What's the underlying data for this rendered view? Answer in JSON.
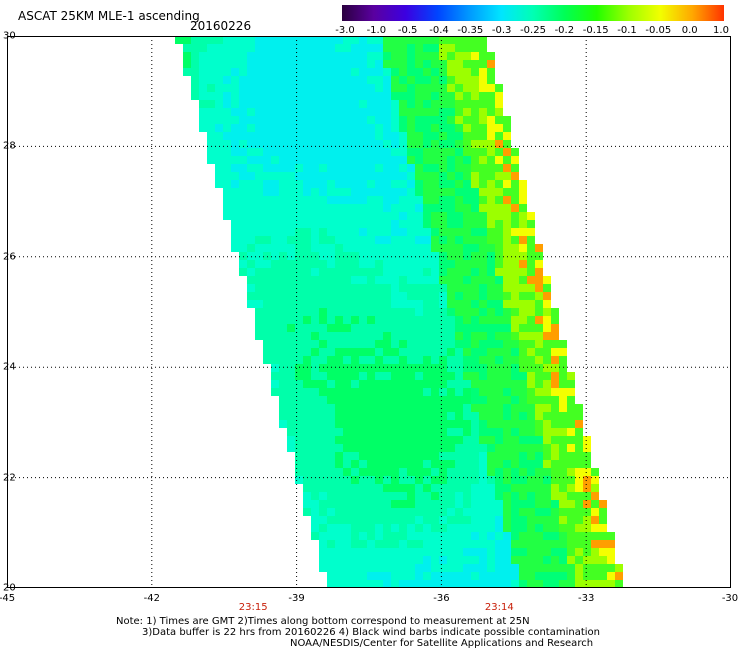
{
  "header": {
    "title": "ASCAT 25KM MLE-1 ascending",
    "date": "20160226"
  },
  "colorbar": {
    "labels": [
      "-3.0",
      "-1.0",
      "-0.5",
      "-0.4",
      "-0.35",
      "-0.3",
      "-0.25",
      "-0.2",
      "-0.15",
      "-0.1",
      "-0.05",
      "0.0",
      "1.0"
    ],
    "colors": [
      "#2b003f",
      "#5a00a0",
      "#3c00e0",
      "#0044ff",
      "#0099ff",
      "#00e5ff",
      "#00ffb4",
      "#00ff55",
      "#22ff00",
      "#9cff00",
      "#f2ff00",
      "#ffa800",
      "#ff3300"
    ]
  },
  "map": {
    "lat_labels": [
      "30",
      "28",
      "26",
      "24",
      "22",
      "20"
    ],
    "lon_labels": [
      "-45",
      "-42",
      "-39",
      "-36",
      "-33",
      "-30"
    ],
    "lat_range": [
      20,
      30
    ],
    "lon_range": [
      -45,
      -30
    ],
    "time_labels": [
      {
        "text": "23:15",
        "lon": -39.9
      },
      {
        "text": "23:14",
        "lon": -34.8
      }
    ]
  },
  "notes": {
    "line1": "Note: 1) Times are GMT 2)Times along bottom correspond to measurement at 25N",
    "line2": "3)Data buffer is 22 hrs from 20160226 4) Black wind barbs indicate possible contamination",
    "line3": "NOAA/NESDIS/Center for Satellite Applications and Research"
  }
}
